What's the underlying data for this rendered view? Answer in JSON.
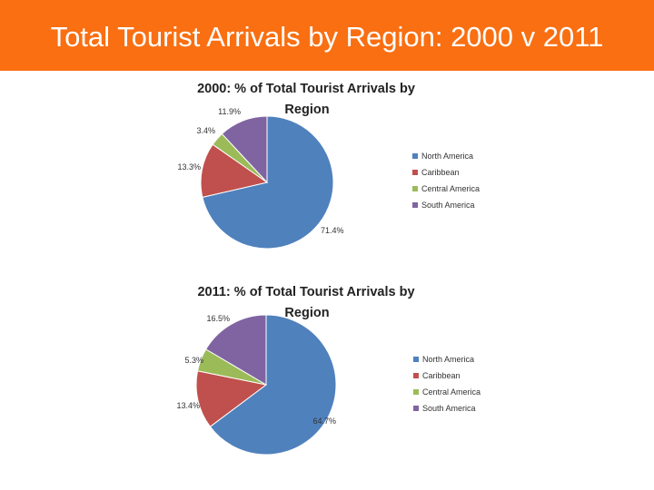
{
  "page": {
    "title": "Total Tourist Arrivals by Region: 2000 v 2011",
    "banner_color": "#f96f12"
  },
  "chart_data": [
    {
      "type": "pie",
      "title_line1": "2000: % of Total Tourist Arrivals by",
      "title_line2": "Region",
      "categories": [
        "North America",
        "Caribbean",
        "Central America",
        "South America"
      ],
      "values": [
        71.4,
        13.3,
        3.4,
        11.9
      ],
      "value_labels": [
        "71.4%",
        "13.3%",
        "3.4%",
        "11.9%"
      ],
      "colors": [
        "#4f81bd",
        "#c0504d",
        "#9bbb59",
        "#8064a2"
      ],
      "legend_position": "right"
    },
    {
      "type": "pie",
      "title_line1": "2011: % of Total Tourist Arrivals by",
      "title_line2": "Region",
      "categories": [
        "North America",
        "Caribbean",
        "Central America",
        "South America"
      ],
      "values": [
        64.7,
        13.4,
        5.3,
        16.5
      ],
      "value_labels": [
        "64.7%",
        "13.4%",
        "5.3%",
        "16.5%"
      ],
      "colors": [
        "#4f81bd",
        "#c0504d",
        "#9bbb59",
        "#8064a2"
      ],
      "legend_position": "right"
    }
  ]
}
